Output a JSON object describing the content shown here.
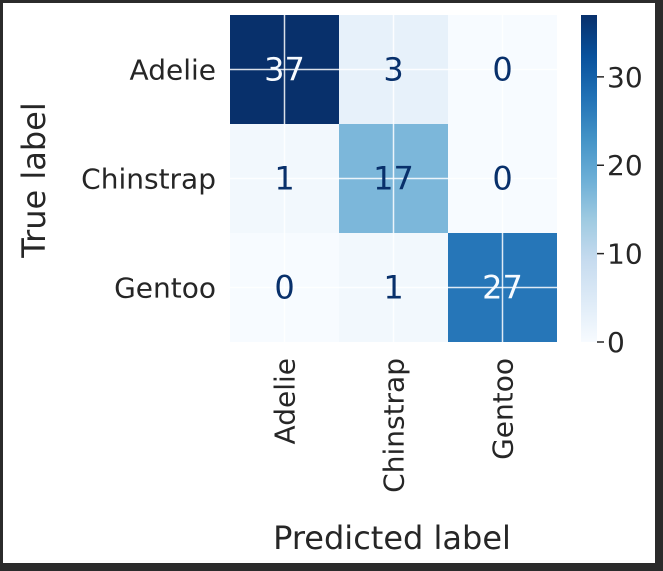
{
  "chart_data": {
    "type": "heatmap",
    "title": "",
    "xlabel": "Predicted label",
    "ylabel": "True label",
    "x_categories": [
      "Adelie",
      "Chinstrap",
      "Gentoo"
    ],
    "y_categories": [
      "Adelie",
      "Chinstrap",
      "Gentoo"
    ],
    "values": [
      [
        37,
        3,
        0
      ],
      [
        1,
        17,
        0
      ],
      [
        0,
        1,
        27
      ]
    ],
    "colormap": "Blues",
    "colorbar": {
      "range": [
        0,
        37
      ],
      "ticks": [
        0,
        10,
        20,
        30
      ],
      "tick_labels": [
        "0",
        "10",
        "20",
        "30"
      ]
    },
    "grid": true,
    "text_colors": {
      "dark": "#08306b",
      "light": "#f7fbff"
    }
  }
}
